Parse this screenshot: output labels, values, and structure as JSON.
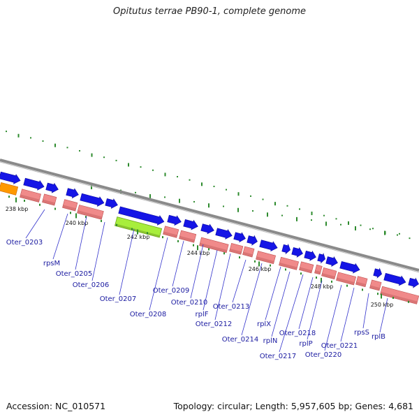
{
  "title": "Opitutus terrae PB90-1, complete genome",
  "accession": "Accession: NC_010571",
  "topology": "Topology: circular; Length: 5,957,605 bp; Genes: 4,681",
  "colors": {
    "forward_gene": "#1515e6",
    "reverse_gene": "#f08a8a",
    "highlight_gene": "#a8ee3c",
    "orange_gene": "#ff9900",
    "tick": "#2e8b2e",
    "backbone": "#8a8a8a",
    "leader": "#3333cc"
  },
  "scale": {
    "labels": [
      "238 kbp",
      "240 kbp",
      "242 kbp",
      "244 kbp",
      "246 kbp",
      "248 kbp",
      "250 kbp"
    ]
  },
  "genes": [
    {
      "label": "Oter_0203"
    },
    {
      "label": "rpsM"
    },
    {
      "label": "Oter_0205"
    },
    {
      "label": "Oter_0206"
    },
    {
      "label": "Oter_0207"
    },
    {
      "label": "Oter_0208"
    },
    {
      "label": "Oter_0209"
    },
    {
      "label": "Oter_0210"
    },
    {
      "label": "rplF"
    },
    {
      "label": "Oter_0212"
    },
    {
      "label": "Oter_0213"
    },
    {
      "label": "Oter_0214"
    },
    {
      "label": "rplX"
    },
    {
      "label": "rplN"
    },
    {
      "label": "Oter_0217"
    },
    {
      "label": "Oter_0218"
    },
    {
      "label": "rplP"
    },
    {
      "label": "Oter_0220"
    },
    {
      "label": "Oter_0221"
    },
    {
      "label": "rpsS"
    },
    {
      "label": "rplB"
    }
  ]
}
